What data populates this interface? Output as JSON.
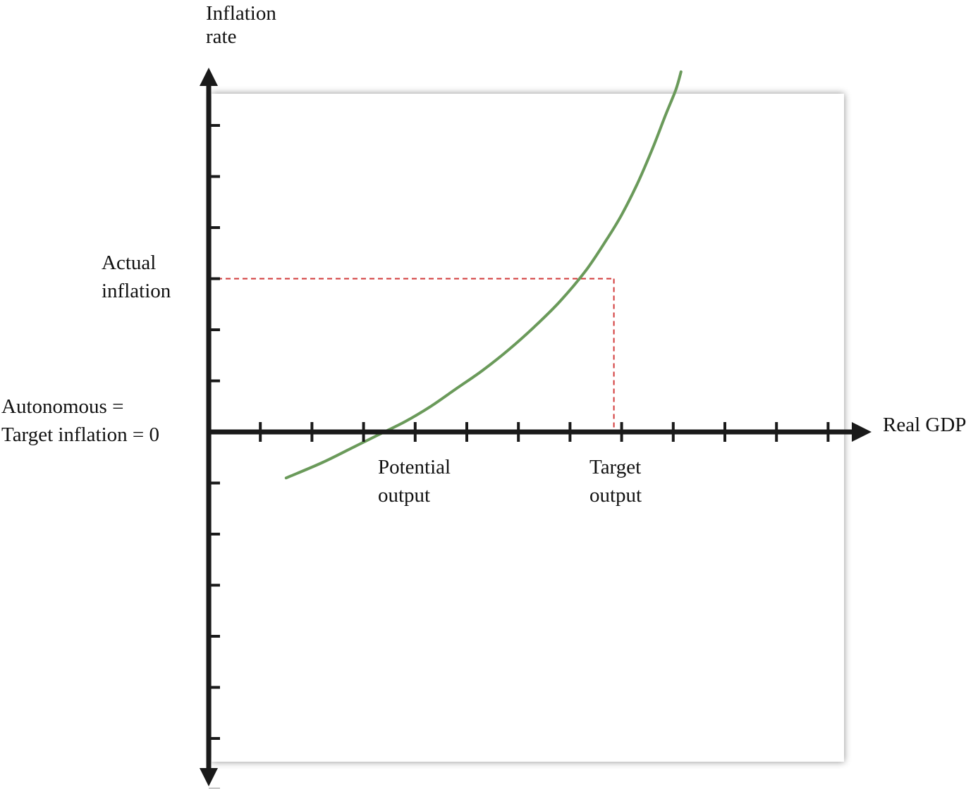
{
  "chart_data": {
    "type": "line",
    "title": "",
    "xlabel": "Real GDP",
    "ylabel_lines": [
      "Inflation",
      "rate"
    ],
    "x_ticks": [
      1,
      2,
      3,
      4,
      5,
      6,
      7,
      8,
      9,
      10,
      11,
      12
    ],
    "y_ticks": [
      -7,
      -6,
      -5,
      -4,
      -3,
      -2,
      -1,
      1,
      2,
      3,
      4,
      5,
      6
    ],
    "xlim": [
      0,
      12.3
    ],
    "ylim": [
      -7.9,
      7.1
    ],
    "grid": false,
    "legend": "none",
    "series": [
      {
        "color": "#6a9a5a",
        "x": [
          1.5,
          2.2,
          2.8,
          3.3,
          3.8,
          4.3,
          4.8,
          5.3,
          5.8,
          6.3,
          6.8,
          7.3,
          7.7,
          8.0,
          8.3,
          8.6,
          8.85,
          9.05,
          9.15
        ],
        "y": [
          -0.9,
          -0.6,
          -0.3,
          -0.05,
          0.2,
          0.5,
          0.85,
          1.2,
          1.6,
          2.05,
          2.55,
          3.15,
          3.75,
          4.25,
          4.85,
          5.55,
          6.2,
          6.7,
          7.05
        ]
      }
    ],
    "annotations": {
      "color": "#d23a3a",
      "target_output_x": 7.85,
      "actual_inflation_y": 3.0,
      "label_actual_inflation": [
        "Actual",
        "inflation"
      ],
      "label_origin": [
        "Autonomous =",
        "Target inflation = 0"
      ],
      "label_potential_output": [
        "Potential",
        "output"
      ],
      "potential_output_x": 3.85,
      "label_target_output": [
        "Target",
        "output"
      ]
    },
    "axis_color": "#1a1a1a",
    "curve_color": "#6a9a5a"
  }
}
